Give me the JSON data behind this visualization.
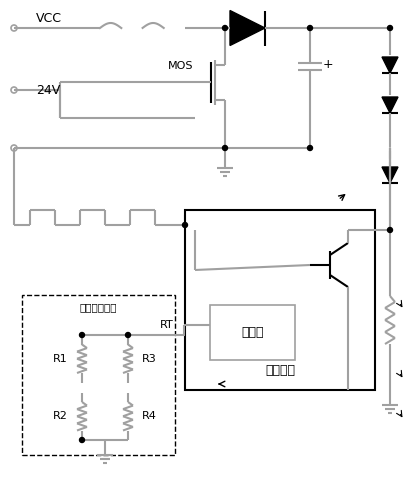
{
  "bg_color": "#ffffff",
  "line_color": "#a0a0a0",
  "dark_color": "#000000",
  "figsize": [
    4.06,
    4.79
  ],
  "dpi": 100,
  "VCC_label": "VCC",
  "V24_label": "24V",
  "MOS_label": "MOS",
  "RT_label": "RT",
  "osc_label": "振荡器",
  "chip_label": "驱动芯片",
  "freq_label": "频率设置电路",
  "R1_label": "R1",
  "R2_label": "R2",
  "R3_label": "R3",
  "R4_label": "R4"
}
